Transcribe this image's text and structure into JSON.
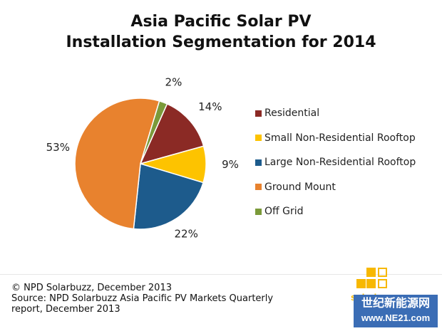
{
  "chart_data": {
    "type": "pie",
    "title_lines": [
      "Asia Pacific Solar PV",
      "Installation Segmentation for 2014"
    ],
    "slices": [
      {
        "label": "Residential",
        "value": 14,
        "display": "14%",
        "color": "#8b2a25"
      },
      {
        "label": "Small Non-Residential Rooftop",
        "value": 9,
        "display": "9%",
        "color": "#fdc300"
      },
      {
        "label": "Large Non-Residential Rooftop",
        "value": 22,
        "display": "22%",
        "color": "#1d5b8c"
      },
      {
        "label": "Ground Mount",
        "value": 53,
        "display": "53%",
        "color": "#e8822e"
      },
      {
        "label": "Off Grid",
        "value": 2,
        "display": "2%",
        "color": "#7b9a3a"
      }
    ],
    "legend_position": "right"
  },
  "footer": {
    "copyright": "© NPD Solarbuzz, December 2013",
    "source_line1": "Source: NPD Solarbuzz Asia Pacific PV Markets Quarterly",
    "source_line2": "report, December 2013"
  },
  "logo": {
    "name": "solarbuzz",
    "watermark_line1": "世纪新能源网",
    "watermark_line2": "www.NE21.com"
  }
}
